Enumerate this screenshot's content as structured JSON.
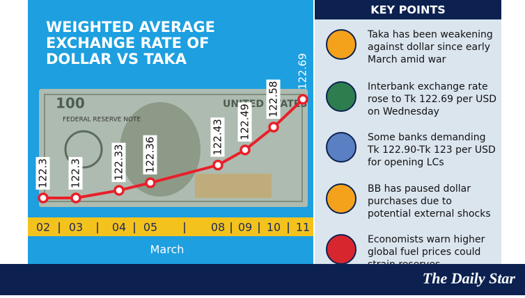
{
  "chart_data": {
    "type": "line",
    "title_lines": [
      "WEIGHTED AVERAGE",
      "EXCHANGE RATE OF",
      "DOLLAR VS TAKA"
    ],
    "categories": [
      "02",
      "03",
      "04",
      "05",
      "08",
      "09",
      "10",
      "11"
    ],
    "x_label": "March",
    "series": [
      {
        "name": "Weighted average rate",
        "color": "#e8202a",
        "values": [
          122.3,
          122.3,
          122.33,
          122.36,
          122.43,
          122.49,
          122.58,
          122.69
        ]
      }
    ]
  },
  "key_points": {
    "title": "KEY POINTS",
    "items": [
      [
        "Taka has been weakening",
        "against dollar since early",
        "March amid war"
      ],
      [
        "Interbank exchange rate",
        "rose to Tk 122.69 per USD",
        "on Wednesday"
      ],
      [
        "Some banks demanding",
        "Tk 122.90-Tk 123 per USD",
        "for opening LCs"
      ],
      [
        "BB has paused dollar",
        "purchases due to",
        "potential external shocks"
      ],
      [
        "Economists warn higher",
        "global fuel prices could",
        "strain reserves"
      ]
    ]
  },
  "brand": "The Daily Star"
}
